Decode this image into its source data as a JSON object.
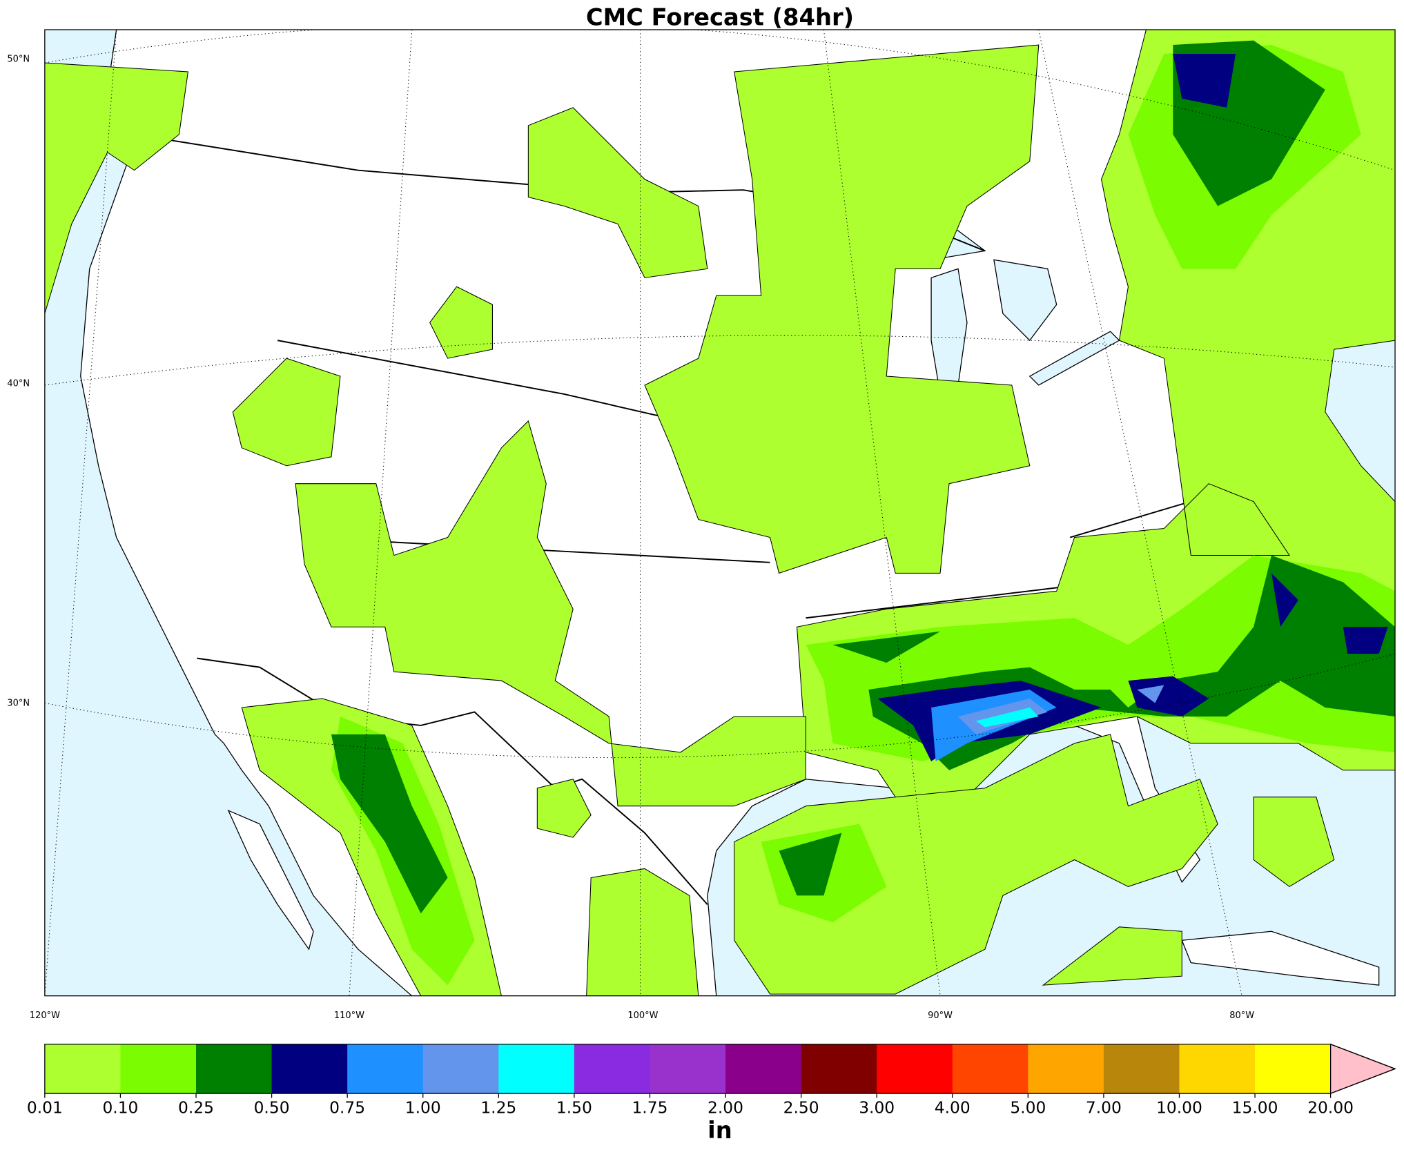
{
  "title": "CMC Forecast (84hr)",
  "lat_labels": [
    "50°N",
    "40°N",
    "30°N"
  ],
  "lon_labels": [
    "120°W",
    "110°W",
    "100°W",
    "90°W",
    "80°W"
  ],
  "colorbar": {
    "colors": [
      "#adff2f",
      "#7cfc00",
      "#008000",
      "#000080",
      "#1e90ff",
      "#6495ed",
      "#00ffff",
      "#8a2be2",
      "#9932cc",
      "#8b008b",
      "#800000",
      "#ff0000",
      "#ff4500",
      "#ffa500",
      "#b8860b",
      "#ffd700",
      "#ffff00"
    ],
    "extend_color": "#ffc0cb",
    "ticks": [
      "0.01",
      "0.10",
      "0.25",
      "0.50",
      "0.75",
      "1.00",
      "1.25",
      "1.50",
      "1.75",
      "2.00",
      "2.50",
      "3.00",
      "4.00",
      "5.00",
      "7.00",
      "10.00",
      "15.00",
      "20.00"
    ],
    "unit": "in"
  }
}
